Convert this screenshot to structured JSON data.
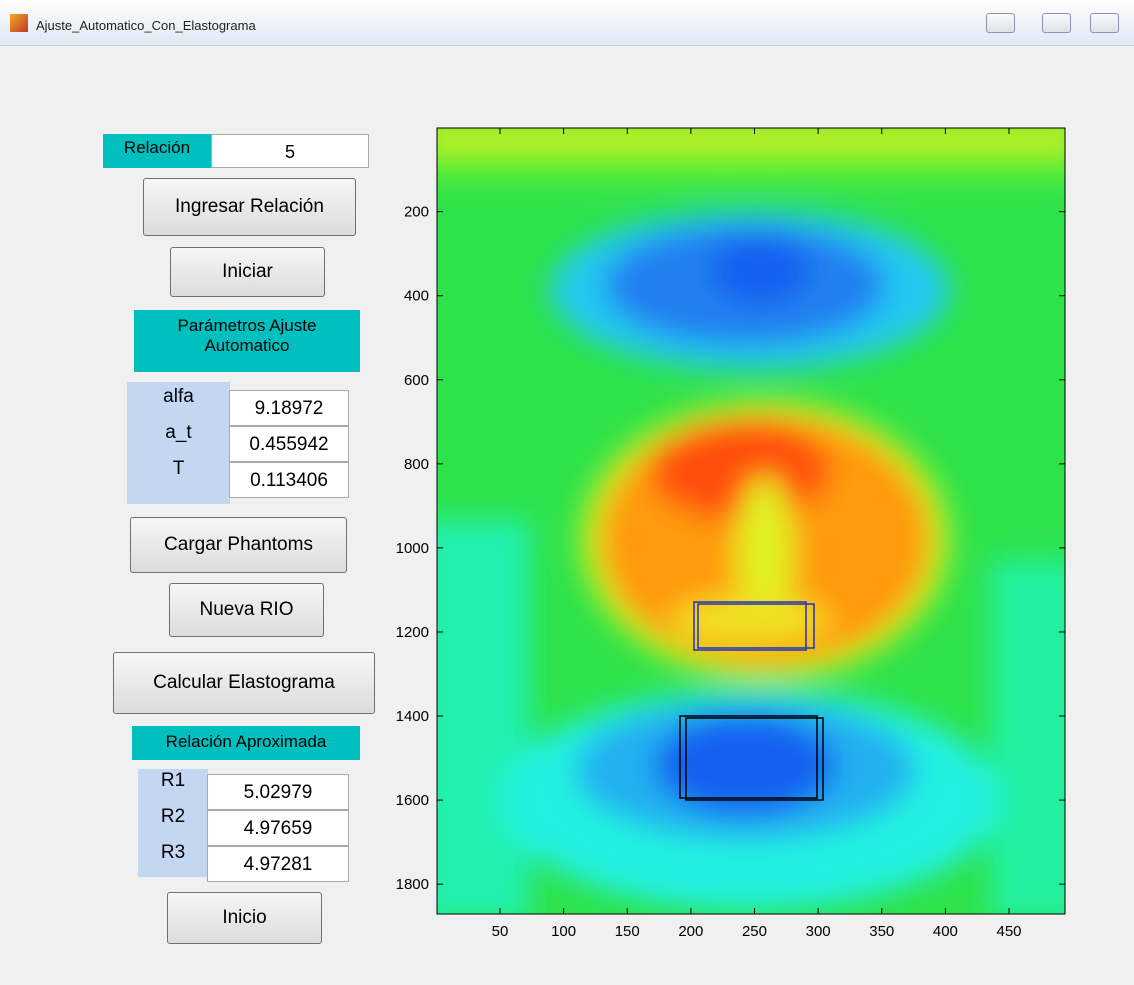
{
  "window": {
    "title": "Ajuste_Automatico_Con_Elastograma"
  },
  "controls": {
    "relacion_label": "Relación",
    "relacion_value": "5",
    "ingresar_button": "Ingresar Relación",
    "iniciar_button": "Iniciar",
    "parametros_title": "Parámetros Ajuste Automatico",
    "parametros": [
      {
        "label": "alfa",
        "value": "9.18972"
      },
      {
        "label": "a_t",
        "value": "0.455942"
      },
      {
        "label": "T",
        "value": "0.113406"
      }
    ],
    "cargar_button": "Cargar Phantoms",
    "nueva_button": "Nueva RIO",
    "calcular_button": "Calcular Elastograma",
    "aproximada_title": "Relación Aproximada",
    "relaciones": [
      {
        "label": "R1",
        "value": "5.02979"
      },
      {
        "label": "R2",
        "value": "4.97659"
      },
      {
        "label": "R3",
        "value": "4.97281"
      }
    ],
    "inicio_button": "Inicio"
  },
  "plot": {
    "xlim": [
      0.5,
      494
    ],
    "ylim": [
      1,
      1871
    ],
    "y_reversed": true,
    "xticks": [
      50,
      100,
      150,
      200,
      250,
      300,
      350,
      400,
      450
    ],
    "yticks": [
      200,
      400,
      600,
      800,
      1000,
      1200,
      1400,
      1600,
      1800
    ]
  }
}
